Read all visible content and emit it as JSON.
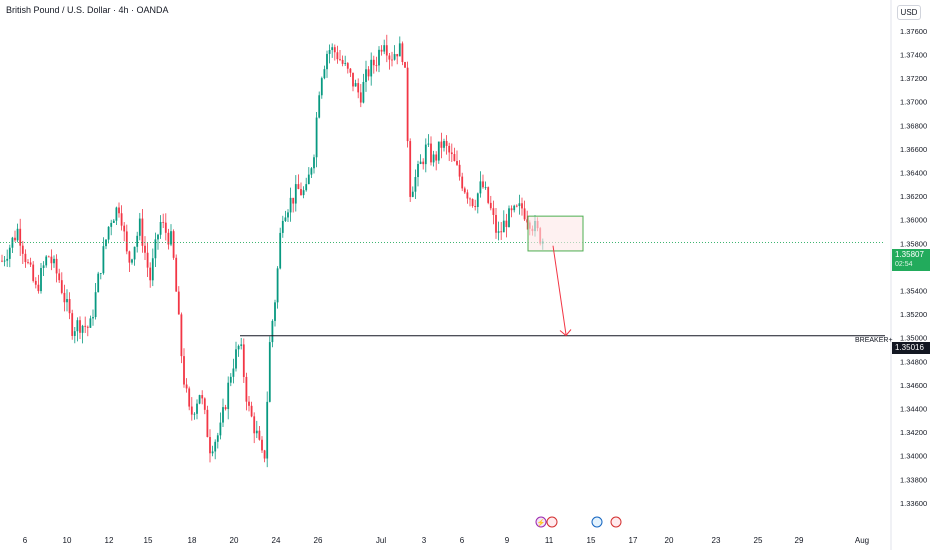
{
  "header": {
    "symbol_title": "British Pound / U.S. Dollar · 4h · OANDA",
    "currency_button": "USD"
  },
  "price_scale": {
    "current_price": "1.35807",
    "countdown": "02:54",
    "level_price": "1.35016"
  },
  "annotations": {
    "breaker_label": "BREAKER+"
  },
  "chart_data": {
    "type": "candlestick",
    "y_ticks": [
      "1.37600",
      "1.37400",
      "1.37200",
      "1.37000",
      "1.36800",
      "1.36600",
      "1.36400",
      "1.36200",
      "1.36000",
      "1.35800",
      "1.35600",
      "1.35400",
      "1.35200",
      "1.35000",
      "1.34800",
      "1.34600",
      "1.34400",
      "1.34200",
      "1.34000",
      "1.33800",
      "1.33600"
    ],
    "x_ticks": [
      "6",
      "10",
      "12",
      "15",
      "18",
      "20",
      "24",
      "26",
      "Jul",
      "3",
      "6",
      "9",
      "11",
      "15",
      "17",
      "20",
      "23",
      "25",
      "29",
      "Aug"
    ],
    "ylim": [
      1.3355,
      1.3785
    ],
    "current_price": 1.35807,
    "breaker_level": 1.35016,
    "zone": {
      "top": 1.3603,
      "bottom": 1.35735
    },
    "projection": {
      "from": 1.3578,
      "to": 1.3501
    },
    "colors": {
      "up": "#089981",
      "down": "#f23645",
      "zone_border": "#4caf50",
      "zone_fill": "#fde8e8",
      "arrow": "#f23645",
      "current_line": "#22ab5c",
      "level_line": "#131722"
    },
    "price_path": [
      [
        0,
        1.3562
      ],
      [
        10,
        1.3578
      ],
      [
        18,
        1.3592
      ],
      [
        28,
        1.3561
      ],
      [
        36,
        1.354
      ],
      [
        48,
        1.3571
      ],
      [
        60,
        1.3548
      ],
      [
        72,
        1.3509
      ],
      [
        80,
        1.3512
      ],
      [
        90,
        1.3508
      ],
      [
        100,
        1.3558
      ],
      [
        110,
        1.36
      ],
      [
        120,
        1.3613
      ],
      [
        128,
        1.3562
      ],
      [
        140,
        1.3595
      ],
      [
        150,
        1.3549
      ],
      [
        160,
        1.3598
      ],
      [
        172,
        1.3581
      ],
      [
        183,
        1.347
      ],
      [
        190,
        1.3432
      ],
      [
        200,
        1.3455
      ],
      [
        210,
        1.3408
      ],
      [
        220,
        1.342
      ],
      [
        232,
        1.3476
      ],
      [
        240,
        1.3495
      ],
      [
        248,
        1.3441
      ],
      [
        256,
        1.342
      ],
      [
        264,
        1.3391
      ],
      [
        270,
        1.3498
      ],
      [
        276,
        1.354
      ],
      [
        282,
        1.3606
      ],
      [
        290,
        1.3615
      ],
      [
        298,
        1.3625
      ],
      [
        306,
        1.3622
      ],
      [
        314,
        1.366
      ],
      [
        320,
        1.372
      ],
      [
        328,
        1.3745
      ],
      [
        336,
        1.3742
      ],
      [
        344,
        1.373
      ],
      [
        352,
        1.3718
      ],
      [
        360,
        1.3705
      ],
      [
        368,
        1.3725
      ],
      [
        376,
        1.3735
      ],
      [
        384,
        1.3755
      ],
      [
        390,
        1.3738
      ],
      [
        398,
        1.3745
      ],
      [
        404,
        1.374
      ],
      [
        410,
        1.3625
      ],
      [
        418,
        1.364
      ],
      [
        426,
        1.366
      ],
      [
        434,
        1.365
      ],
      [
        442,
        1.3665
      ],
      [
        450,
        1.3655
      ],
      [
        458,
        1.364
      ],
      [
        466,
        1.3625
      ],
      [
        474,
        1.3615
      ],
      [
        482,
        1.363
      ],
      [
        490,
        1.361
      ],
      [
        498,
        1.3585
      ],
      [
        506,
        1.36
      ],
      [
        514,
        1.3605
      ],
      [
        522,
        1.361
      ],
      [
        530,
        1.36
      ],
      [
        538,
        1.3588
      ],
      [
        545,
        1.3581
      ]
    ]
  }
}
